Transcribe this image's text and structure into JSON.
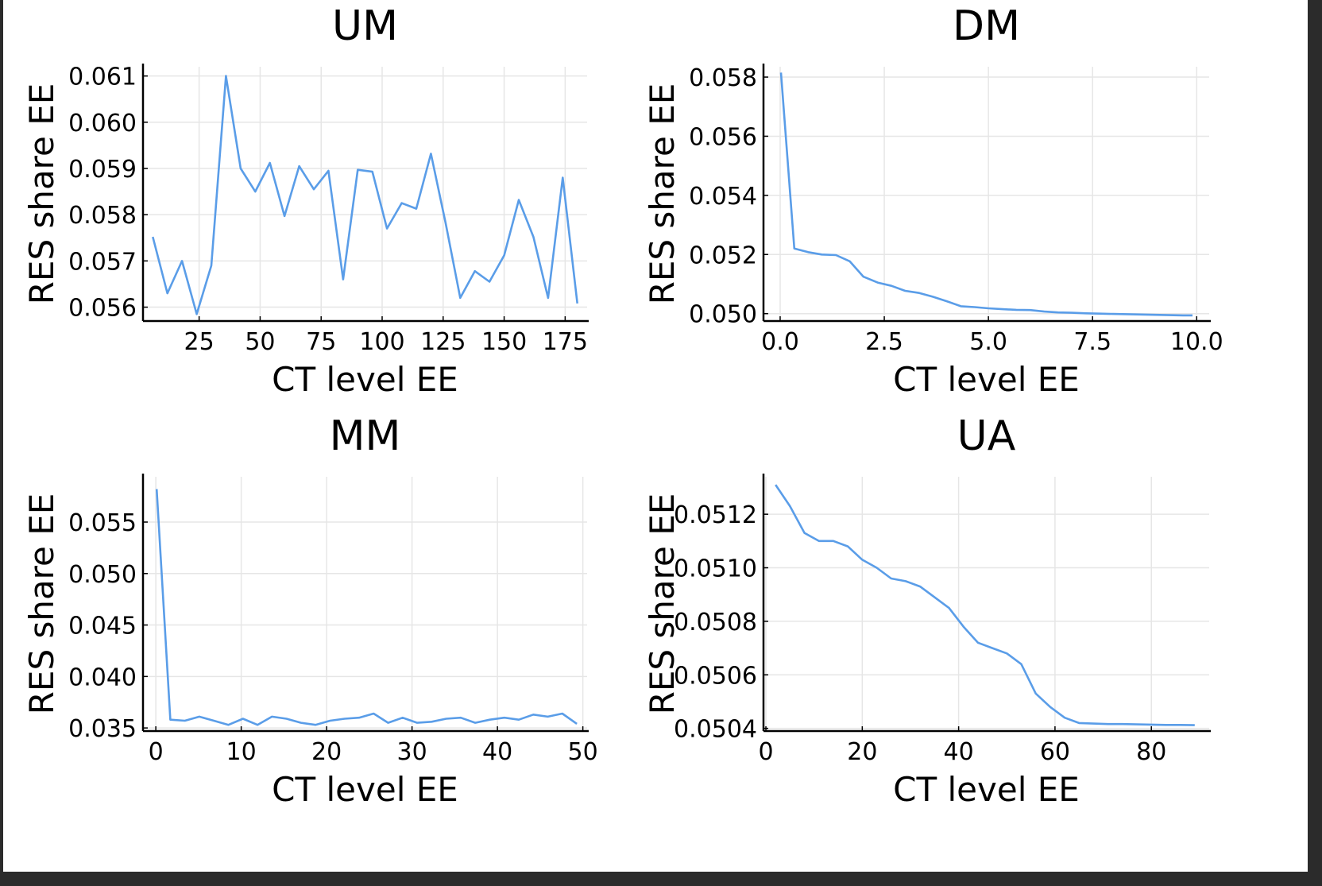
{
  "figure": {
    "background": "#ffffff",
    "series_color": "#5a9de8"
  },
  "chart_data": [
    {
      "type": "line",
      "title": "UM",
      "xlabel": "CT level EE",
      "ylabel": "RES share EE",
      "xlim": [
        2,
        184
      ],
      "ylim": [
        0.0557,
        0.0612
      ],
      "xticks": [
        25,
        50,
        75,
        100,
        125,
        150,
        175
      ],
      "xtick_labels": [
        "25",
        "50",
        "75",
        "100",
        "125",
        "150",
        "175"
      ],
      "yticks": [
        0.056,
        0.057,
        0.058,
        0.059,
        0.06,
        0.061
      ],
      "ytick_labels": [
        "0.056",
        "0.057",
        "0.058",
        "0.059",
        "0.060",
        "0.061"
      ],
      "grid": true,
      "series": [
        {
          "x": [
            6,
            12,
            18,
            24,
            30,
            36,
            42,
            48,
            54,
            60,
            66,
            72,
            78,
            84,
            90,
            96,
            102,
            108,
            114,
            120,
            126,
            132,
            138,
            144,
            150,
            156,
            162,
            168,
            174,
            180
          ],
          "y": [
            0.05752,
            0.0563,
            0.057,
            0.05585,
            0.0569,
            0.061,
            0.059,
            0.0585,
            0.05912,
            0.05797,
            0.05905,
            0.05855,
            0.05895,
            0.0566,
            0.05897,
            0.05893,
            0.0577,
            0.05825,
            0.05813,
            0.05932,
            0.05782,
            0.0562,
            0.05678,
            0.05655,
            0.05712,
            0.05832,
            0.05752,
            0.0562,
            0.0588,
            0.05608
          ]
        }
      ]
    },
    {
      "type": "line",
      "title": "DM",
      "xlabel": "CT level EE",
      "ylabel": "RES share EE",
      "xlim": [
        -0.4,
        10.3
      ],
      "ylim": [
        0.04975,
        0.05835
      ],
      "xticks": [
        0,
        2.5,
        5,
        7.5,
        10
      ],
      "xtick_labels": [
        "0.0",
        "2.5",
        "5.0",
        "7.5",
        "10.0"
      ],
      "yticks": [
        0.05,
        0.052,
        0.054,
        0.056,
        0.058
      ],
      "ytick_labels": [
        "0.050",
        "0.052",
        "0.054",
        "0.056",
        "0.058"
      ],
      "grid": true,
      "series": [
        {
          "x": [
            0.02,
            0.34,
            0.67,
            1.0,
            1.34,
            1.67,
            2.0,
            2.34,
            2.67,
            3.0,
            3.34,
            3.67,
            4.0,
            4.34,
            4.67,
            5.0,
            5.34,
            5.67,
            6.0,
            6.34,
            6.67,
            7.0,
            7.34,
            7.67,
            8.0,
            8.34,
            8.67,
            9.0,
            9.34,
            9.67,
            9.9
          ],
          "y": [
            0.05815,
            0.0522,
            0.05208,
            0.052,
            0.05198,
            0.05177,
            0.05125,
            0.05105,
            0.05094,
            0.05077,
            0.0507,
            0.05057,
            0.05042,
            0.05025,
            0.05022,
            0.05018,
            0.05015,
            0.05013,
            0.05012,
            0.05007,
            0.05004,
            0.05003,
            0.05001,
            0.05,
            0.04999,
            0.04998,
            0.04997,
            0.04996,
            0.04995,
            0.04994,
            0.04994
          ]
        }
      ]
    },
    {
      "type": "line",
      "title": "MM",
      "xlabel": "CT level EE",
      "ylabel": "RES share EE",
      "xlim": [
        -1.5,
        50.5
      ],
      "ylim": [
        0.0347,
        0.0594
      ],
      "xticks": [
        0,
        10,
        20,
        30,
        40,
        50
      ],
      "xtick_labels": [
        "0",
        "10",
        "20",
        "30",
        "40",
        "50"
      ],
      "yticks": [
        0.035,
        0.04,
        0.045,
        0.05,
        0.055
      ],
      "ytick_labels": [
        "0.035",
        "0.040",
        "0.045",
        "0.050",
        "0.055"
      ],
      "grid": true,
      "series": [
        {
          "x": [
            0.1,
            1.7,
            3.4,
            5.1,
            6.8,
            8.5,
            10.2,
            11.9,
            13.6,
            15.3,
            17.0,
            18.7,
            20.4,
            22.1,
            23.8,
            25.5,
            27.2,
            28.9,
            30.6,
            32.3,
            34.0,
            35.7,
            37.4,
            39.1,
            40.8,
            42.5,
            44.2,
            45.9,
            47.6,
            49.3
          ],
          "y": [
            0.0582,
            0.0358,
            0.0357,
            0.0361,
            0.0357,
            0.0353,
            0.0359,
            0.0353,
            0.0361,
            0.0359,
            0.0355,
            0.0353,
            0.0357,
            0.0359,
            0.036,
            0.0364,
            0.0355,
            0.036,
            0.0355,
            0.0356,
            0.0359,
            0.036,
            0.0355,
            0.0358,
            0.036,
            0.0358,
            0.0363,
            0.0361,
            0.0364,
            0.0354
          ]
        }
      ]
    },
    {
      "type": "line",
      "title": "UA",
      "xlabel": "CT level EE",
      "ylabel": "RES share EE",
      "xlim": [
        -0.5,
        92
      ],
      "ylim": [
        0.05039,
        0.05134
      ],
      "xticks": [
        0,
        20,
        40,
        60,
        80
      ],
      "xtick_labels": [
        "0",
        "20",
        "40",
        "60",
        "80"
      ],
      "yticks": [
        0.0504,
        0.0506,
        0.0508,
        0.051,
        0.0512
      ],
      "ytick_labels": [
        "0.0504",
        "0.0506",
        "0.0508",
        "0.0510",
        "0.0512"
      ],
      "grid": true,
      "series": [
        {
          "x": [
            2,
            5,
            8,
            11,
            14,
            17,
            20,
            23,
            26,
            29,
            32,
            35,
            38,
            41,
            44,
            47,
            50,
            53,
            56,
            59,
            62,
            65,
            68,
            71,
            74,
            77,
            80,
            83,
            86,
            89
          ],
          "y": [
            0.05131,
            0.05123,
            0.05113,
            0.0511,
            0.0511,
            0.05108,
            0.05103,
            0.051,
            0.05096,
            0.05095,
            0.05093,
            0.05089,
            0.05085,
            0.05078,
            0.05072,
            0.0507,
            0.05068,
            0.05064,
            0.05053,
            0.05048,
            0.05044,
            0.05042,
            0.050418,
            0.050416,
            0.050416,
            0.050415,
            0.050414,
            0.050413,
            0.050413,
            0.050412
          ]
        }
      ]
    }
  ]
}
